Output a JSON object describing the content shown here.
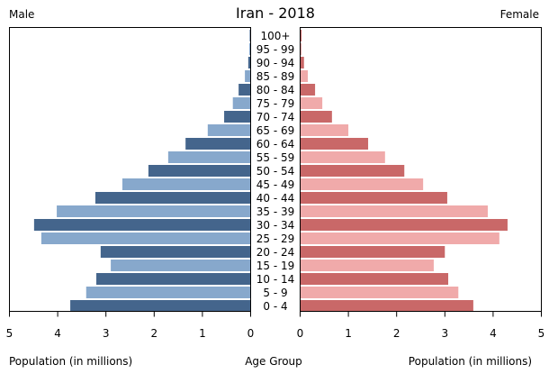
{
  "chart_data": {
    "type": "bar",
    "subtype": "population-pyramid",
    "title": "Iran - 2018",
    "left_label": "Male",
    "right_label": "Female",
    "xlabel_left": "Population (in millions)",
    "xlabel_center": "Age Group",
    "xlabel_right": "Population (in millions)",
    "xlim": [
      0,
      5
    ],
    "xticks": [
      0,
      1,
      2,
      3,
      4,
      5
    ],
    "grid": false,
    "categories": [
      "100+",
      "95 - 99",
      "90 - 94",
      "85 - 89",
      "80 - 84",
      "75 - 79",
      "70 - 74",
      "65 - 69",
      "60 - 64",
      "55 - 59",
      "50 - 54",
      "45 - 49",
      "40 - 44",
      "35 - 39",
      "30 - 34",
      "25 - 29",
      "20 - 24",
      "15 - 19",
      "10 - 14",
      "5 - 9",
      "0 - 4"
    ],
    "series": [
      {
        "name": "Male",
        "colors": [
          "#44658c",
          "#87a8cc"
        ],
        "values": [
          0.01,
          0.02,
          0.04,
          0.11,
          0.24,
          0.36,
          0.54,
          0.88,
          1.34,
          1.7,
          2.11,
          2.65,
          3.21,
          4.01,
          4.48,
          4.33,
          3.1,
          2.89,
          3.19,
          3.4,
          3.73
        ]
      },
      {
        "name": "Female",
        "colors": [
          "#c96868",
          "#f0aaaa"
        ],
        "values": [
          0.02,
          0.02,
          0.07,
          0.15,
          0.3,
          0.45,
          0.65,
          0.99,
          1.4,
          1.75,
          2.15,
          2.54,
          3.04,
          3.88,
          4.29,
          4.12,
          2.99,
          2.76,
          3.06,
          3.27,
          3.58
        ]
      }
    ]
  }
}
